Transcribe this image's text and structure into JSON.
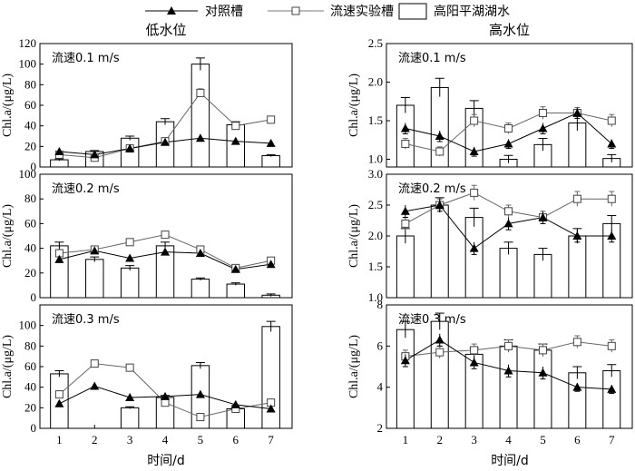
{
  "legend": {
    "control_label": "对照槽",
    "flow_label": "流速实验槽",
    "lake_label": "高阳平湖湖水"
  },
  "x_axis_label": "时间/d",
  "chart_data": [
    {
      "type": "bar",
      "panel_title": "低水位",
      "annotation": "流速0.1 m/s",
      "ylabel": "Chl.a/(μg/L)",
      "x": [
        1,
        2,
        3,
        4,
        5,
        6,
        7
      ],
      "ylim": [
        0,
        120
      ],
      "yticks": [
        0,
        20,
        40,
        60,
        80,
        100,
        120
      ],
      "series": [
        {
          "name": "高阳平湖湖水",
          "kind": "bar",
          "values": [
            7,
            15,
            28,
            44,
            100,
            41,
            11
          ],
          "errors": [
            1,
            1,
            2,
            3,
            6,
            3,
            1
          ]
        },
        {
          "name": "对照槽",
          "kind": "line-filled-triangle",
          "values": [
            15,
            12,
            18,
            24,
            28,
            25,
            23
          ],
          "errors": [
            1,
            1,
            1,
            1,
            2,
            1,
            1
          ]
        },
        {
          "name": "流速实验槽",
          "kind": "line-open-square",
          "values": [
            12,
            9,
            18,
            25,
            72,
            40,
            46
          ],
          "errors": [
            1,
            1,
            1,
            1,
            4,
            2,
            2
          ]
        }
      ]
    },
    {
      "type": "bar",
      "panel_title": "高水位",
      "annotation": "流速0.1 m/s",
      "ylabel": "Chl.a/(μg/L)",
      "x": [
        1,
        2,
        3,
        4,
        5,
        6,
        7
      ],
      "ylim": [
        0.9,
        2.5
      ],
      "yticks": [
        1.0,
        1.5,
        2.0,
        2.5
      ],
      "series": [
        {
          "name": "高阳平湖湖水",
          "kind": "bar",
          "values": [
            1.7,
            1.93,
            1.66,
            1.0,
            1.19,
            1.47,
            1.01
          ],
          "errors": [
            0.1,
            0.12,
            0.1,
            0.05,
            0.08,
            0.1,
            0.05
          ]
        },
        {
          "name": "对照槽",
          "kind": "line-filled-triangle",
          "values": [
            1.4,
            1.3,
            1.1,
            1.2,
            1.4,
            1.6,
            1.2
          ],
          "errors": [
            0.07,
            0.07,
            0.06,
            0.06,
            0.07,
            0.07,
            0.06
          ]
        },
        {
          "name": "流速实验槽",
          "kind": "line-open-square",
          "values": [
            1.2,
            1.1,
            1.5,
            1.4,
            1.6,
            1.6,
            1.5
          ],
          "errors": [
            0.07,
            0.06,
            0.08,
            0.07,
            0.08,
            0.07,
            0.08
          ]
        }
      ]
    },
    {
      "type": "bar",
      "panel_title": "",
      "annotation": "流速0.2 m/s",
      "ylabel": "Chl.a/(μg/L)",
      "x": [
        1,
        2,
        3,
        4,
        5,
        6,
        7
      ],
      "ylim": [
        0,
        100
      ],
      "yticks": [
        0,
        20,
        40,
        60,
        80,
        100
      ],
      "series": [
        {
          "name": "高阳平湖湖水",
          "kind": "bar",
          "values": [
            42,
            31,
            24,
            42,
            15,
            11,
            2
          ],
          "errors": [
            3,
            2,
            2,
            3,
            1,
            1,
            1
          ]
        },
        {
          "name": "对照槽",
          "kind": "line-filled-triangle",
          "values": [
            31,
            38,
            32,
            37,
            36,
            23,
            27
          ],
          "errors": [
            2,
            2,
            2,
            2,
            2,
            2,
            2
          ]
        },
        {
          "name": "流速实验槽",
          "kind": "line-open-square",
          "values": [
            36,
            39,
            45,
            51,
            39,
            24,
            30
          ],
          "errors": [
            2,
            2,
            2,
            2,
            2,
            2,
            2
          ]
        }
      ]
    },
    {
      "type": "bar",
      "panel_title": "",
      "annotation": "流速0.2 m/s",
      "ylabel": "Chl.a/(μg/L)",
      "x": [
        1,
        2,
        3,
        4,
        5,
        6,
        7
      ],
      "ylim": [
        1.0,
        3.0
      ],
      "yticks": [
        1.0,
        1.5,
        2.0,
        2.5,
        3.0
      ],
      "series": [
        {
          "name": "高阳平湖湖水",
          "kind": "bar",
          "values": [
            2.0,
            2.5,
            2.3,
            1.8,
            1.7,
            2.0,
            2.2
          ],
          "errors": [
            0.12,
            0.12,
            0.15,
            0.1,
            0.1,
            0.12,
            0.13
          ]
        },
        {
          "name": "对照槽",
          "kind": "line-filled-triangle",
          "values": [
            2.4,
            2.5,
            1.8,
            2.2,
            2.3,
            2.0,
            2.0
          ],
          "errors": [
            0.1,
            0.1,
            0.1,
            0.1,
            0.1,
            0.1,
            0.1
          ]
        },
        {
          "name": "流速实验槽",
          "kind": "line-open-square",
          "values": [
            2.2,
            2.5,
            2.7,
            2.4,
            2.3,
            2.6,
            2.6
          ],
          "errors": [
            0.1,
            0.1,
            0.12,
            0.1,
            0.1,
            0.12,
            0.12
          ]
        }
      ]
    },
    {
      "type": "bar",
      "panel_title": "",
      "annotation": "流速0.3 m/s",
      "ylabel": "Chl.a/(μg/L)",
      "x": [
        1,
        2,
        3,
        4,
        5,
        6,
        7
      ],
      "ylim": [
        0,
        120
      ],
      "yticks": [
        0,
        20,
        40,
        60,
        80,
        100
      ],
      "series": [
        {
          "name": "高阳平湖湖水",
          "kind": "bar",
          "values": [
            53,
            0,
            20,
            30,
            61,
            19,
            99
          ],
          "errors": [
            3,
            0,
            1,
            2,
            3,
            1,
            5
          ]
        },
        {
          "name": "对照槽",
          "kind": "line-filled-triangle",
          "values": [
            24,
            41,
            30,
            31,
            33,
            23,
            19
          ],
          "errors": [
            2,
            2,
            2,
            2,
            2,
            2,
            2
          ]
        },
        {
          "name": "流速实验槽",
          "kind": "line-open-square",
          "values": [
            33,
            63,
            59,
            25,
            11,
            19,
            25
          ],
          "errors": [
            2,
            2,
            2,
            2,
            1,
            2,
            2
          ]
        }
      ]
    },
    {
      "type": "bar",
      "panel_title": "",
      "annotation": "流速0.3 m/s",
      "ylabel": "Chl.a/(μg/L)",
      "x": [
        1,
        2,
        3,
        4,
        5,
        6,
        7
      ],
      "ylim": [
        2,
        8
      ],
      "yticks": [
        2,
        4,
        6,
        8
      ],
      "series": [
        {
          "name": "高阳平湖湖水",
          "kind": "bar",
          "values": [
            6.8,
            7.2,
            5.6,
            6.0,
            5.8,
            4.7,
            4.8
          ],
          "errors": [
            0.4,
            0.4,
            0.3,
            0.3,
            0.3,
            0.3,
            0.3
          ]
        },
        {
          "name": "对照槽",
          "kind": "line-filled-triangle",
          "values": [
            5.3,
            6.3,
            5.2,
            4.8,
            4.7,
            4.0,
            3.9
          ],
          "errors": [
            0.3,
            0.3,
            0.3,
            0.3,
            0.3,
            0.2,
            0.2
          ]
        },
        {
          "name": "流速实验槽",
          "kind": "line-open-square",
          "values": [
            5.5,
            5.7,
            5.8,
            6.0,
            5.8,
            6.2,
            6.0
          ],
          "errors": [
            0.3,
            0.3,
            0.3,
            0.3,
            0.3,
            0.3,
            0.3
          ]
        }
      ]
    }
  ]
}
